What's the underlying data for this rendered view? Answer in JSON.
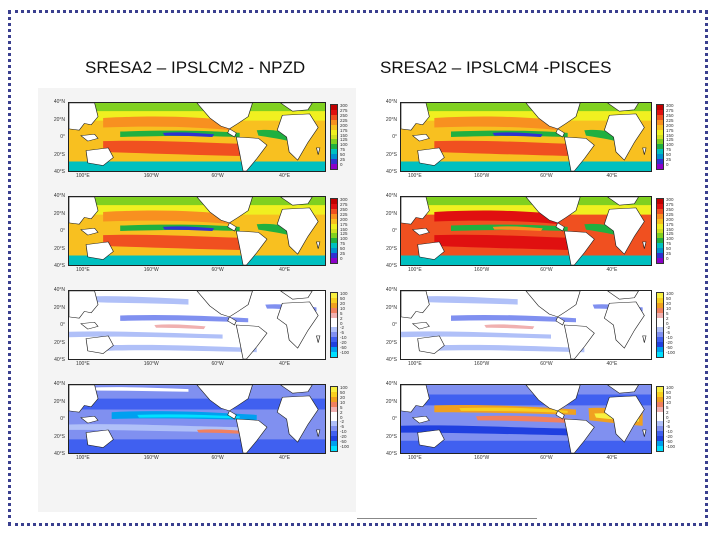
{
  "titles": {
    "left": "SRESA2 – IPSLCM2 - NPZD",
    "right": "SRESA2 – IPSLCM4 -PISCES"
  },
  "colors": {
    "frame_border": "#3a3f8f",
    "land": "#ffffff",
    "warm_scale": [
      "#8a00c8",
      "#3030d0",
      "#0090d0",
      "#00c0c0",
      "#20b040",
      "#80d020",
      "#d0e020",
      "#f0f020",
      "#f8c020",
      "#f89020",
      "#f05020",
      "#e01010",
      "#c00000"
    ],
    "diverge_scale": [
      "#00e0ff",
      "#00a0f0",
      "#2040e0",
      "#4060f0",
      "#8090f0",
      "#b0c0f8",
      "#ffffff",
      "#ffffff",
      "#f0b0b0",
      "#f08060",
      "#f0a020",
      "#f8d020",
      "#f8f040"
    ]
  },
  "maps": {
    "left": [
      {
        "name": "left-map-1",
        "type": "warm",
        "lat": [
          "40°N",
          "20°N",
          "0°",
          "20°S",
          "40°S"
        ],
        "lon": [
          "100°E",
          "160°W",
          "60°W",
          "40°E"
        ],
        "cbar": [
          "300",
          "275",
          "250",
          "225",
          "200",
          "175",
          "150",
          "125",
          "100",
          "75",
          "50",
          "25",
          "0"
        ]
      },
      {
        "name": "left-map-2",
        "type": "warm",
        "lat": [
          "40°N",
          "20°N",
          "0°",
          "20°S",
          "40°S"
        ],
        "lon": [
          "100°E",
          "160°W",
          "60°W",
          "40°E"
        ],
        "cbar": [
          "300",
          "275",
          "250",
          "225",
          "200",
          "175",
          "150",
          "125",
          "100",
          "75",
          "50",
          "25",
          "0"
        ]
      },
      {
        "name": "left-map-3",
        "type": "diverge",
        "lat": [
          "40°N",
          "20°N",
          "0°",
          "20°S",
          "40°S"
        ],
        "lon": [
          "100°E",
          "160°W",
          "60°W",
          "40°E"
        ],
        "cbar": [
          "100",
          "50",
          "20",
          "10",
          "5",
          "2",
          "0",
          "-2",
          "-5",
          "-10",
          "-20",
          "-50",
          "-100"
        ]
      },
      {
        "name": "left-map-4",
        "type": "diverge-strong",
        "lat": [
          "40°N",
          "20°N",
          "0°",
          "20°S",
          "40°S"
        ],
        "lon": [
          "100°E",
          "160°W",
          "60°W",
          "40°E"
        ],
        "cbar": [
          "100",
          "50",
          "20",
          "10",
          "5",
          "2",
          "0",
          "-2",
          "-5",
          "-10",
          "-20",
          "-50",
          "-100"
        ]
      }
    ],
    "right": [
      {
        "name": "right-map-1",
        "type": "warm",
        "lat": [
          "40°N",
          "20°N",
          "0°",
          "20°S",
          "40°S"
        ],
        "lon": [
          "100°E",
          "160°W",
          "60°W",
          "40°E"
        ],
        "cbar": [
          "300",
          "275",
          "250",
          "225",
          "200",
          "175",
          "150",
          "125",
          "100",
          "75",
          "50",
          "25",
          "0"
        ]
      },
      {
        "name": "right-map-2",
        "type": "warm-hot",
        "lat": [
          "40°N",
          "20°N",
          "0°",
          "20°S",
          "40°S"
        ],
        "lon": [
          "100°E",
          "160°W",
          "60°W",
          "40°E"
        ],
        "cbar": [
          "300",
          "275",
          "250",
          "225",
          "200",
          "175",
          "150",
          "125",
          "100",
          "75",
          "50",
          "25",
          "0"
        ]
      },
      {
        "name": "right-map-3",
        "type": "diverge",
        "lat": [
          "40°N",
          "20°N",
          "0°",
          "20°S",
          "40°S"
        ],
        "lon": [
          "100°E",
          "160°W",
          "60°W",
          "40°E"
        ],
        "cbar": [
          "100",
          "50",
          "20",
          "10",
          "5",
          "2",
          "0",
          "-2",
          "-5",
          "-10",
          "-20",
          "-50",
          "-100"
        ]
      },
      {
        "name": "right-map-4",
        "type": "diverge-mixed",
        "lat": [
          "40°N",
          "20°N",
          "0°",
          "20°S",
          "40°S"
        ],
        "lon": [
          "100°E",
          "160°W",
          "60°W",
          "40°E"
        ],
        "cbar": [
          "100",
          "50",
          "20",
          "10",
          "5",
          "2",
          "0",
          "-2",
          "-5",
          "-10",
          "-20",
          "-50",
          "-100"
        ]
      }
    ]
  }
}
